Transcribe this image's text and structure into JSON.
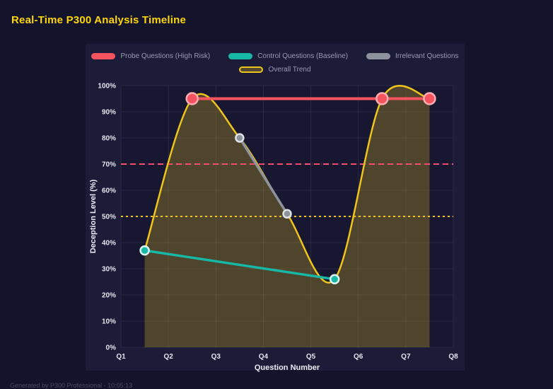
{
  "page": {
    "title": "Real-Time P300 Analysis Timeline",
    "footer": "Generated by P300 Professional - 10:05:13"
  },
  "colors": {
    "background": "#13132b",
    "panel": "#1c1c39",
    "plot_background": "#171732",
    "title": "#ffd60a",
    "probe": "#f4545e",
    "control": "#18b8a6",
    "irrelevant": "#8d939d",
    "trend": "#efc41b",
    "threshold_high": "#ff4d6e",
    "threshold_mid": "#f0c419"
  },
  "chart_data": {
    "type": "line",
    "title": "Real-Time P300 Analysis Timeline",
    "xlabel": "Question Number",
    "ylabel": "Deception Level (%)",
    "x_ticks": [
      "Q1",
      "Q2",
      "Q3",
      "Q4",
      "Q5",
      "Q6",
      "Q7",
      "Q8"
    ],
    "y_ticks": [
      "0%",
      "10%",
      "20%",
      "30%",
      "40%",
      "50%",
      "60%",
      "70%",
      "80%",
      "90%",
      "100%"
    ],
    "ylim": [
      0,
      100
    ],
    "grid": true,
    "legend_position": "top",
    "series": [
      {
        "name": "Probe Questions (High Risk)",
        "color": "#f4545e",
        "x": [
          2.5,
          6.5,
          7.5
        ],
        "y": [
          95,
          95,
          95
        ],
        "line_width": 4,
        "point_radius": 8,
        "point_stroke": "#ffadb3",
        "point_name": "probe-point"
      },
      {
        "name": "Control Questions (Baseline)",
        "color": "#18b8a6",
        "x": [
          1.5,
          5.5
        ],
        "y": [
          37,
          26
        ],
        "line_width": 3.5,
        "point_radius": 6,
        "point_stroke": "#ddf6f2",
        "point_name": "control-point"
      },
      {
        "name": "Irrelevant Questions",
        "color": "#8d939d",
        "x": [
          3.5,
          4.5
        ],
        "y": [
          80,
          51
        ],
        "line_width": 3.5,
        "point_radius": 5.5,
        "point_stroke": "#dfe2e6",
        "point_name": "irrelevant-point"
      },
      {
        "name": "Overall Trend",
        "color": "#efc41b",
        "fill_color": "rgba(239,196,27,0.26)",
        "smooth": true,
        "x": [
          1.5,
          2.5,
          3.5,
          4.5,
          5.5,
          6.5,
          7.5
        ],
        "y": [
          37,
          95,
          80,
          51,
          26,
          95,
          95
        ],
        "line_width": 2.5,
        "point_radius": 0,
        "point_stroke": "",
        "point_name": "trend-point"
      }
    ],
    "thresholds": [
      {
        "y": 70,
        "color": "#ff4d6e",
        "dash": "8 5"
      },
      {
        "y": 50,
        "color": "#f0c419",
        "dash": "3 4"
      }
    ]
  }
}
